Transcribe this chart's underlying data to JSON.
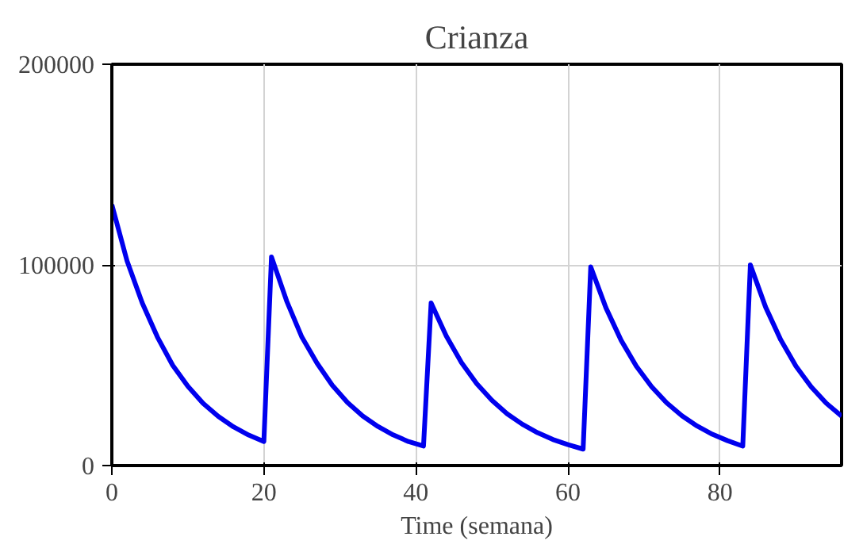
{
  "chart_data": {
    "type": "line",
    "title": "Crianza",
    "xlabel": "Time (semana)",
    "xlim": [
      0,
      96
    ],
    "ylim": [
      0,
      200000
    ],
    "xticks": [
      0,
      20,
      40,
      60,
      80
    ],
    "yticks": [
      0,
      100000,
      200000
    ],
    "grid": true,
    "line_style": "solid",
    "marker": "none",
    "series": [
      {
        "color": "#0000ee",
        "x": [
          0,
          2,
          4,
          6,
          8,
          10,
          12,
          14,
          16,
          18,
          20,
          21,
          23,
          25,
          27,
          29,
          31,
          33,
          35,
          37,
          39,
          41,
          42,
          44,
          46,
          48,
          50,
          52,
          54,
          56,
          58,
          60,
          62,
          63,
          65,
          67,
          69,
          71,
          73,
          75,
          77,
          79,
          81,
          83,
          84,
          86,
          88,
          90,
          92,
          94,
          96
        ],
        "values": [
          130000,
          102000,
          81000,
          64000,
          50000,
          39500,
          31000,
          24500,
          19300,
          15200,
          12000,
          104000,
          82000,
          64000,
          51000,
          40000,
          31400,
          24700,
          19500,
          15300,
          12000,
          9700,
          81000,
          64500,
          51300,
          40800,
          32500,
          25800,
          20600,
          16400,
          13000,
          10400,
          8200,
          99000,
          78600,
          62400,
          49500,
          39300,
          31200,
          24800,
          19700,
          15600,
          12400,
          9700,
          100000,
          79000,
          62600,
          49500,
          39200,
          31000,
          24600
        ]
      }
    ]
  }
}
